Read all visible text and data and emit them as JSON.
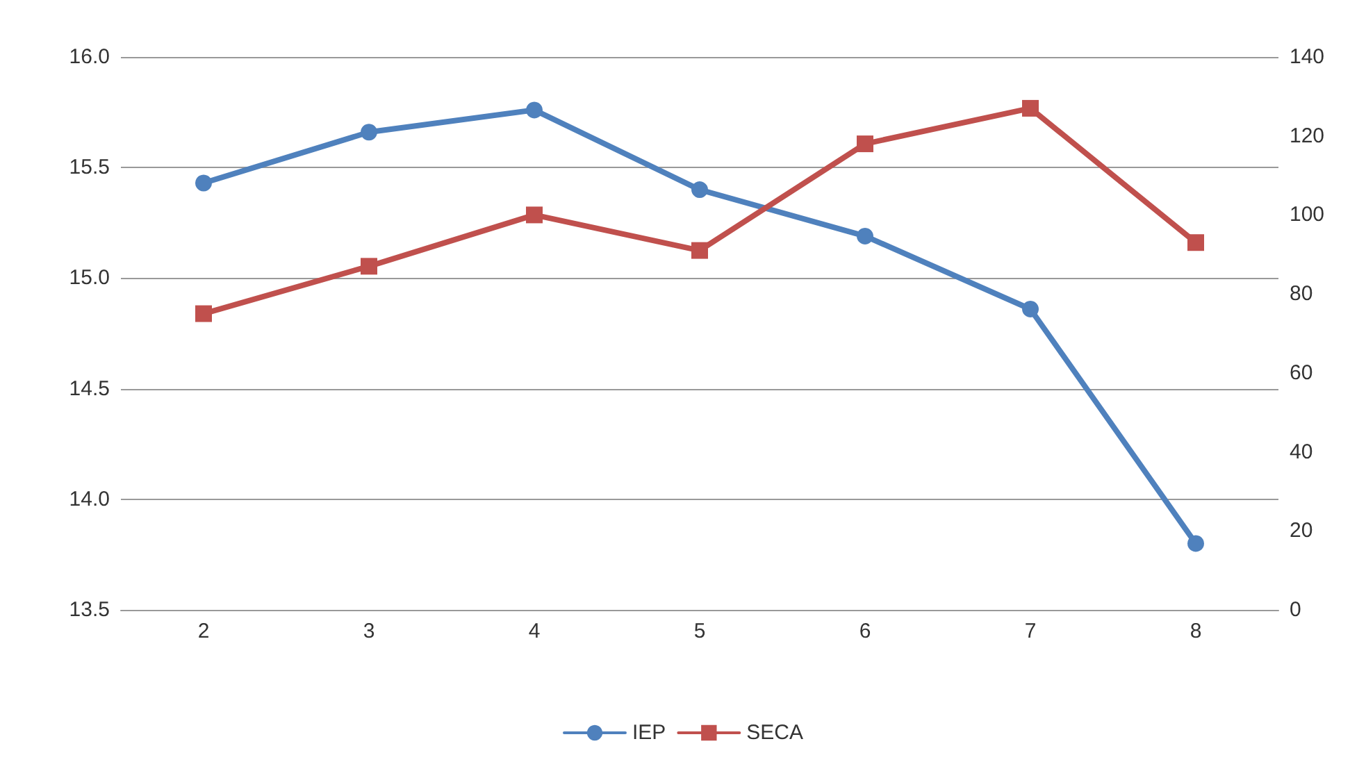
{
  "chart_data": {
    "type": "line",
    "categories": [
      "2",
      "3",
      "4",
      "5",
      "6",
      "7",
      "8"
    ],
    "series": [
      {
        "name": "IEP",
        "color": "#4f81bd",
        "marker": "circle",
        "values": [
          15.43,
          15.66,
          15.76,
          15.4,
          15.19,
          14.86,
          13.8
        ]
      },
      {
        "name": "SECA",
        "color": "#c0504d",
        "marker": "square",
        "axis": "y2",
        "values": [
          75,
          87,
          100,
          91,
          118,
          127,
          93
        ]
      }
    ],
    "ylim": [
      13.5,
      16.0
    ],
    "yticks": [
      {
        "value": 13.5,
        "label": "13.5"
      },
      {
        "value": 14,
        "label": "14.0"
      },
      {
        "value": 14.5,
        "label": "14.5"
      },
      {
        "value": 15,
        "label": "15.0"
      },
      {
        "value": 15.5,
        "label": "15.5"
      },
      {
        "value": 16,
        "label": "16.0"
      }
    ],
    "y2lim": [
      0,
      140
    ],
    "y2ticks": [
      0,
      20,
      40,
      60,
      80,
      100,
      120,
      140
    ],
    "grid": "y",
    "legend": "bottom",
    "line_style": "solid"
  }
}
